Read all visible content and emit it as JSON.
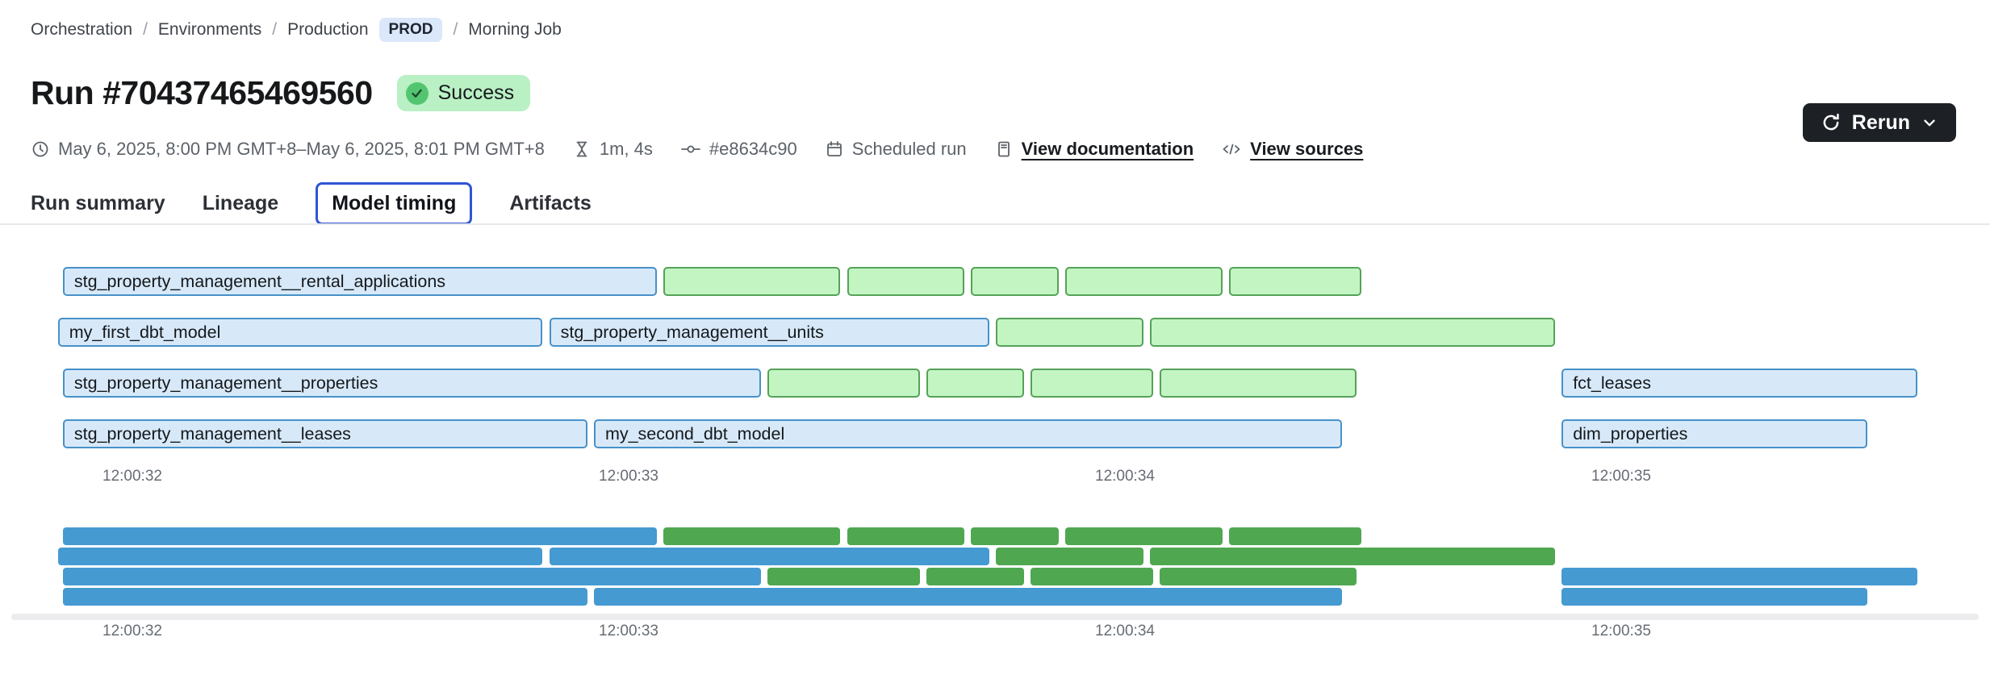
{
  "theme": {
    "accent_blue": "#2f55d4",
    "prod_badge_bg": "#dbe7fa",
    "prod_badge_text": "#1c2430",
    "success_bg": "#b9f0c4",
    "success_circle": "#53c571",
    "rerun_bg": "#1d2125",
    "rerun_text": "#ffffff",
    "text_gray": "#5c6269",
    "divider": "#e6e8ea",
    "bar_blue_fill": "#d7e9f9",
    "bar_blue_border": "#4791c8",
    "bar_green_fill": "#c3f5c3",
    "bar_green_border": "#55a258",
    "mini_blue": "#459ad2",
    "mini_green": "#4fa750",
    "track_gray": "#ececee"
  },
  "breadcrumb": {
    "items": [
      "Orchestration",
      "Environments",
      "Production",
      "Morning Job"
    ],
    "separator": "/",
    "env_badge": "PROD"
  },
  "header": {
    "title": "Run #70437465469560",
    "status_badge": "Success",
    "rerun_label": "Rerun"
  },
  "meta": {
    "time_range": "May 6, 2025, 8:00 PM GMT+8–May 6, 2025, 8:01 PM GMT+8",
    "duration": "1m, 4s",
    "commit_hash": "#e8634c90",
    "trigger": "Scheduled run",
    "documentation_link": "View documentation",
    "sources_link": "View sources"
  },
  "tabs": {
    "items": [
      {
        "label": "Run summary",
        "active": false
      },
      {
        "label": "Lineage",
        "active": false
      },
      {
        "label": "Model timing",
        "active": true
      },
      {
        "label": "Artifacts",
        "active": false
      }
    ]
  },
  "chart_data": {
    "type": "gantt",
    "title": "Model timing",
    "x_unit": "seconds relative to 12:00:32",
    "time_axis": {
      "ticks": [
        "12:00:32",
        "12:00:33",
        "12:00:34",
        "12:00:35"
      ],
      "tick_seconds": [
        0,
        1,
        2,
        3
      ]
    },
    "legend": {
      "blue": "labeled model bar",
      "green": "unlabeled bar"
    },
    "rows": [
      [
        {
          "label": "stg_property_management__rental_applications",
          "color": "blue",
          "start": -0.14,
          "end": 1.06
        },
        {
          "label": "",
          "color": "green",
          "start": 1.07,
          "end": 1.43
        },
        {
          "label": "",
          "color": "green",
          "start": 1.44,
          "end": 1.68
        },
        {
          "label": "",
          "color": "green",
          "start": 1.69,
          "end": 1.87
        },
        {
          "label": "",
          "color": "green",
          "start": 1.88,
          "end": 2.2
        },
        {
          "label": "",
          "color": "green",
          "start": 2.21,
          "end": 2.48
        }
      ],
      [
        {
          "label": "my_first_dbt_model",
          "color": "blue",
          "start": -0.15,
          "end": 0.83
        },
        {
          "label": "stg_property_management__units",
          "color": "blue",
          "start": 0.84,
          "end": 1.73
        },
        {
          "label": "",
          "color": "green",
          "start": 1.74,
          "end": 2.04
        },
        {
          "label": "",
          "color": "green",
          "start": 2.05,
          "end": 2.87
        }
      ],
      [
        {
          "label": "stg_property_management__properties",
          "color": "blue",
          "start": -0.14,
          "end": 1.27
        },
        {
          "label": "",
          "color": "green",
          "start": 1.28,
          "end": 1.59
        },
        {
          "label": "",
          "color": "green",
          "start": 1.6,
          "end": 1.8
        },
        {
          "label": "",
          "color": "green",
          "start": 1.81,
          "end": 2.06
        },
        {
          "label": "",
          "color": "green",
          "start": 2.07,
          "end": 2.47
        },
        {
          "label": "fct_leases",
          "color": "blue",
          "start": 2.88,
          "end": 3.6
        }
      ],
      [
        {
          "label": "stg_property_management__leases",
          "color": "blue",
          "start": -0.14,
          "end": 0.92
        },
        {
          "label": "my_second_dbt_model",
          "color": "blue",
          "start": 0.93,
          "end": 2.44
        },
        {
          "label": "dim_properties",
          "color": "blue",
          "start": 2.88,
          "end": 3.5
        }
      ]
    ]
  }
}
